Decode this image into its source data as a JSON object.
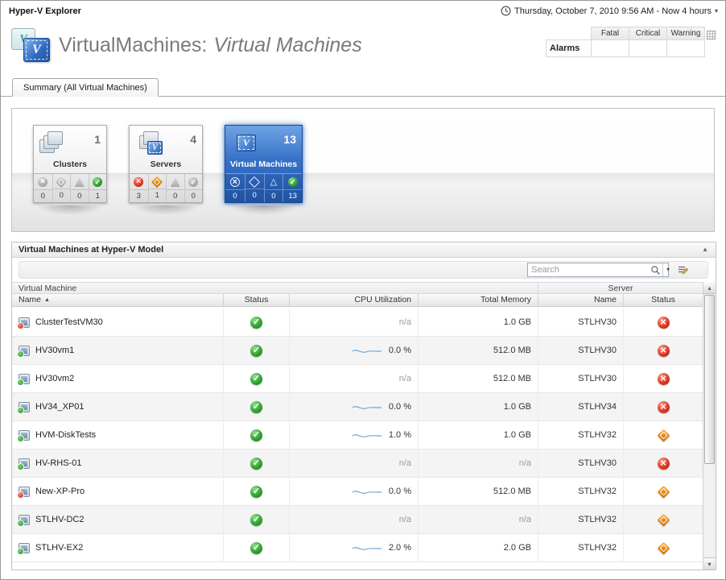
{
  "top_bar": {
    "app_title": "Hyper-V Explorer",
    "time_range_label": "Thursday, October 7, 2010 9:56 AM - Now 4 hours"
  },
  "header": {
    "title_prefix": "VirtualMachines:",
    "title_emphasis": "Virtual Machines"
  },
  "alarms": {
    "row_label": "Alarms",
    "columns": [
      "Fatal",
      "Critical",
      "Warning"
    ],
    "values": [
      "",
      "",
      ""
    ]
  },
  "tabs": {
    "summary_label": "Summary (All Virtual Machines)"
  },
  "tiles": [
    {
      "label": "Clusters",
      "count": "1",
      "icon": "clusters-icon",
      "selected": false,
      "statuses": [
        {
          "kind": "fatal",
          "count": "0"
        },
        {
          "kind": "critical",
          "count": "0"
        },
        {
          "kind": "warning",
          "count": "0"
        },
        {
          "kind": "normal",
          "count": "1"
        }
      ]
    },
    {
      "label": "Servers",
      "count": "4",
      "icon": "servers-icon",
      "selected": false,
      "statuses": [
        {
          "kind": "fatal",
          "count": "3"
        },
        {
          "kind": "critical",
          "count": "1"
        },
        {
          "kind": "warning",
          "count": "0"
        },
        {
          "kind": "normal",
          "count": "0"
        }
      ]
    },
    {
      "label": "Virtual Machines",
      "count": "13",
      "icon": "virtual-machines-icon",
      "selected": true,
      "statuses": [
        {
          "kind": "fatal",
          "count": "0"
        },
        {
          "kind": "critical",
          "count": "0"
        },
        {
          "kind": "warning",
          "count": "0"
        },
        {
          "kind": "normal",
          "count": "13"
        }
      ]
    }
  ],
  "panel": {
    "title": "Virtual Machines at Hyper-V Model",
    "search": {
      "placeholder": "Search",
      "value": ""
    },
    "table": {
      "groups": {
        "vm": "Virtual Machine",
        "server": "Server"
      },
      "columns": {
        "name": "Name",
        "status": "Status",
        "cpu": "CPU Utilization",
        "memory": "Total Memory",
        "server_name": "Name",
        "server_status": "Status"
      },
      "sort": {
        "column": "Name",
        "direction": "asc"
      },
      "rows": [
        {
          "name": "ClusterTestVM30",
          "icon": "red",
          "status": "normal",
          "cpu": "n/a",
          "sparkline": false,
          "memory": "1.0 GB",
          "server_name": "STLHV30",
          "server_status": "fatal"
        },
        {
          "name": "HV30vm1",
          "icon": "green",
          "status": "normal",
          "cpu": "0.0 %",
          "sparkline": true,
          "memory": "512.0 MB",
          "server_name": "STLHV30",
          "server_status": "fatal"
        },
        {
          "name": "HV30vm2",
          "icon": "green",
          "status": "normal",
          "cpu": "n/a",
          "sparkline": false,
          "memory": "512.0 MB",
          "server_name": "STLHV30",
          "server_status": "fatal"
        },
        {
          "name": "HV34_XP01",
          "icon": "green",
          "status": "normal",
          "cpu": "0.0 %",
          "sparkline": true,
          "memory": "1.0 GB",
          "server_name": "STLHV34",
          "server_status": "fatal"
        },
        {
          "name": "HVM-DiskTests",
          "icon": "green",
          "status": "normal",
          "cpu": "1.0 %",
          "sparkline": true,
          "memory": "1.0 GB",
          "server_name": "STLHV32",
          "server_status": "critical"
        },
        {
          "name": "HV-RHS-01",
          "icon": "green",
          "status": "normal",
          "cpu": "n/a",
          "sparkline": false,
          "memory": "n/a",
          "server_name": "STLHV30",
          "server_status": "fatal"
        },
        {
          "name": "New-XP-Pro",
          "icon": "red",
          "status": "normal",
          "cpu": "0.0 %",
          "sparkline": true,
          "memory": "512.0 MB",
          "server_name": "STLHV32",
          "server_status": "critical"
        },
        {
          "name": "STLHV-DC2",
          "icon": "green",
          "status": "normal",
          "cpu": "n/a",
          "sparkline": false,
          "memory": "n/a",
          "server_name": "STLHV32",
          "server_status": "critical"
        },
        {
          "name": "STLHV-EX2",
          "icon": "green",
          "status": "normal",
          "cpu": "2.0 %",
          "sparkline": true,
          "memory": "2.0 GB",
          "server_name": "STLHV32",
          "server_status": "critical"
        }
      ]
    }
  },
  "colors": {
    "status_normal": "#2fa42f",
    "status_fatal": "#dd3a26",
    "status_critical": "#e8860d",
    "status_warning": "#e8b50f",
    "selected_tile": "#2f6fc4",
    "sparkline": "#6fa8d8"
  }
}
